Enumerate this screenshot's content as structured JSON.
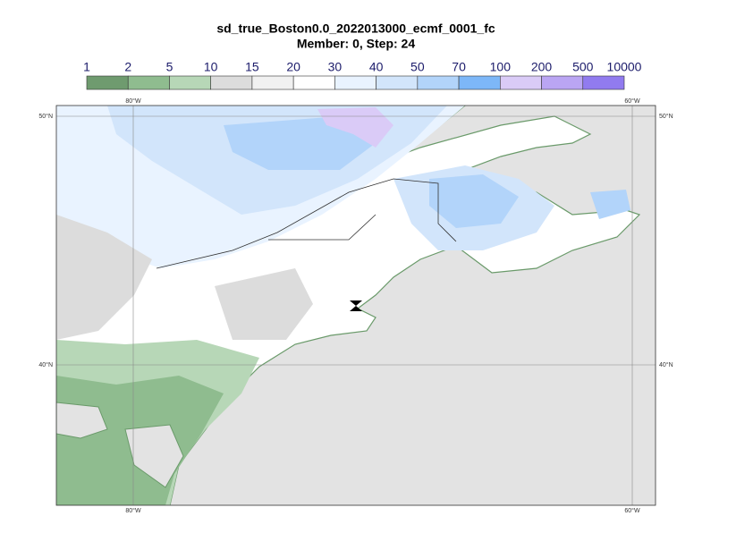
{
  "title": {
    "line1": "sd_true_Boston0.0_2022013000_ecmf_0001_fc",
    "line2": "Member: 0, Step: 24"
  },
  "colorbar": {
    "labels": [
      1,
      2,
      5,
      10,
      15,
      20,
      30,
      40,
      50,
      70,
      100,
      200,
      500,
      10000
    ],
    "colors": [
      "#6f9b6f",
      "#8fbc8f",
      "#b7d7b7",
      "#dcdcdc",
      "#f1f1f1",
      "#ffffff",
      "#e9f3ff",
      "#d2e5fb",
      "#b2d4fa",
      "#7db7f8",
      "#dacbf7",
      "#baa5f3",
      "#917bef"
    ]
  },
  "map": {
    "lon_labels": [
      "80°W",
      "60°W"
    ],
    "lat_labels": [
      "50°N",
      "40°N"
    ]
  }
}
